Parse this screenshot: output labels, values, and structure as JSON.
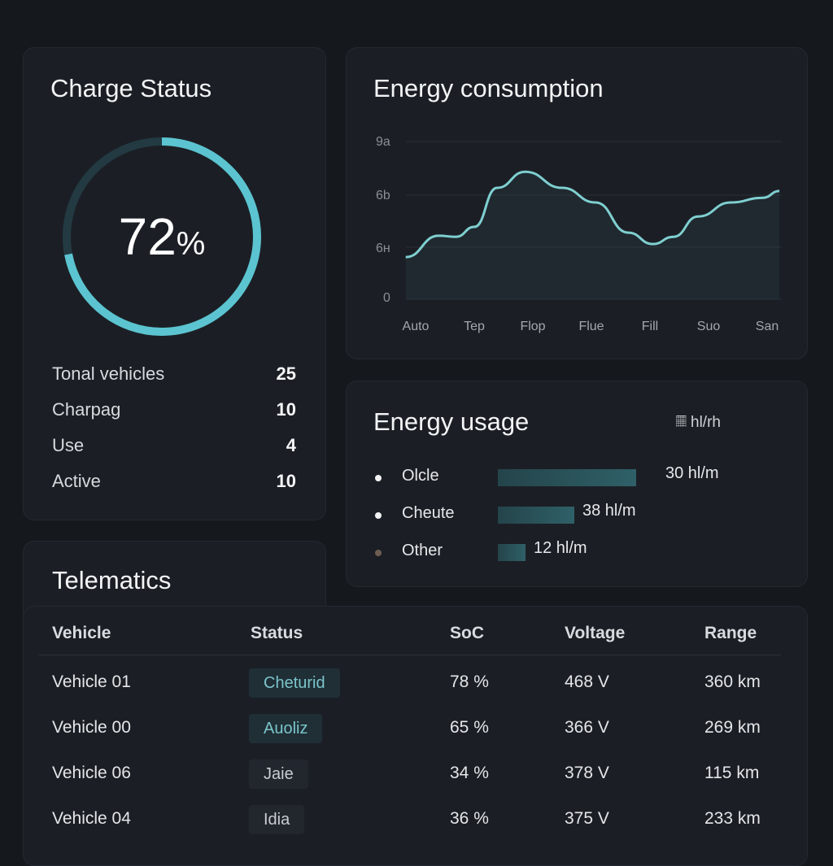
{
  "charge_status": {
    "title": "Charge Status",
    "percent": 72,
    "percent_label": "72",
    "percent_unit": "%",
    "color": "#5bc4d0",
    "stats": [
      {
        "label": "Tonal vehicles",
        "value": "25"
      },
      {
        "label": "Charpag",
        "value": "10"
      },
      {
        "label": "Use",
        "value": "4"
      },
      {
        "label": "Active",
        "value": "10"
      }
    ]
  },
  "chart_data": {
    "type": "area",
    "title": "Energy consumption",
    "categories": [
      "Auto",
      "Tep",
      "Flop",
      "Flue",
      "Fill",
      "Suo",
      "San"
    ],
    "y_tick_labels": [
      "0",
      "6ʜ",
      "6b",
      "9a"
    ],
    "ylim": [
      0,
      3
    ],
    "grid": true,
    "color": "#7fcfd0",
    "x": [
      -0.17,
      0.39,
      0.69,
      1.0,
      1.39,
      1.87,
      2.5,
      3.07,
      3.63,
      4.05,
      4.4,
      4.82,
      5.38,
      5.93,
      6.21
    ],
    "y": [
      0.81,
      1.22,
      1.2,
      1.39,
      2.14,
      2.45,
      2.14,
      1.86,
      1.28,
      1.06,
      1.2,
      1.59,
      1.86,
      1.95,
      2.08
    ]
  },
  "energy_usage": {
    "title": "Energy usage",
    "unit_label": "hl/rh",
    "unit_icon": "𝄜",
    "items": [
      {
        "label": "Olcle",
        "value": "30 hl/m",
        "fill": 0.85,
        "dot": "#f2f2f2"
      },
      {
        "label": "Cheute",
        "value": "38 hl/m",
        "fill": 0.47,
        "dot": "#f2f2f2"
      },
      {
        "label": "Other",
        "value": "12 hl/m",
        "fill": 0.17,
        "dot": "#6e5d52"
      }
    ]
  },
  "telematics": {
    "title": "Telematics",
    "headers": [
      "Vehicle",
      "Status",
      "SoC",
      "Voltage",
      "Range"
    ],
    "rows": [
      [
        "Vehicle 01",
        "Cheturid",
        "78 %",
        "468 V",
        "360 km"
      ],
      [
        "Vehicle 00",
        "Auoliz",
        "65 %",
        "366 V",
        "269 km"
      ],
      [
        "Vehicle 06",
        "Jaie",
        "34 %",
        "378 V",
        "115 km"
      ],
      [
        "Vehicle 04",
        "Idia",
        "36 %",
        "375 V",
        "233 km"
      ]
    ]
  }
}
